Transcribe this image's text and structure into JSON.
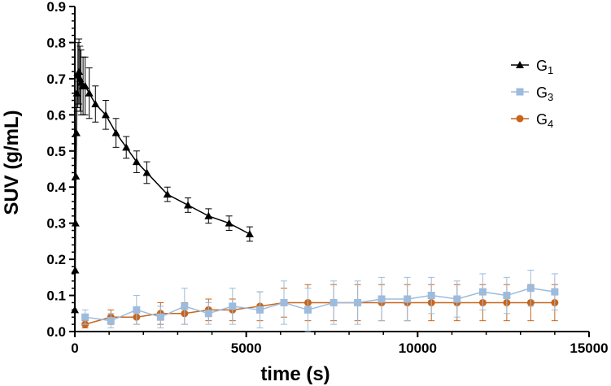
{
  "chart_data": {
    "type": "line",
    "title": "",
    "xlabel": "time (s)",
    "ylabel": "SUV (g/mL)",
    "xlim": [
      0,
      15000
    ],
    "ylim": [
      0,
      0.9
    ],
    "xticks": [
      "0",
      "5000",
      "10000",
      "15000"
    ],
    "yticks": [
      "0.0",
      "0.1",
      "0.2",
      "0.3",
      "0.4",
      "0.5",
      "0.6",
      "0.7",
      "0.8",
      "0.9"
    ],
    "grid": false,
    "legend_position": "top-right",
    "series": [
      {
        "name": "G1",
        "legend_base": "G",
        "legend_sub": "1",
        "color": "#000000",
        "marker": "triangle",
        "points": [
          {
            "x": 0,
            "y": 0.06,
            "err": 0.0
          },
          {
            "x": 10,
            "y": 0.17,
            "err": 0.0
          },
          {
            "x": 20,
            "y": 0.3,
            "err": 0.0
          },
          {
            "x": 30,
            "y": 0.43,
            "err": 0.0
          },
          {
            "x": 45,
            "y": 0.55,
            "err": 0.0
          },
          {
            "x": 60,
            "y": 0.66,
            "err": 0.05
          },
          {
            "x": 90,
            "y": 0.71,
            "err": 0.09
          },
          {
            "x": 120,
            "y": 0.72,
            "err": 0.09
          },
          {
            "x": 150,
            "y": 0.7,
            "err": 0.09
          },
          {
            "x": 180,
            "y": 0.69,
            "err": 0.09
          },
          {
            "x": 240,
            "y": 0.68,
            "err": 0.08
          },
          {
            "x": 300,
            "y": 0.68,
            "err": 0.08
          },
          {
            "x": 420,
            "y": 0.66,
            "err": 0.07
          },
          {
            "x": 600,
            "y": 0.63,
            "err": 0.05
          },
          {
            "x": 900,
            "y": 0.6,
            "err": 0.04
          },
          {
            "x": 1200,
            "y": 0.55,
            "err": 0.04
          },
          {
            "x": 1500,
            "y": 0.51,
            "err": 0.03
          },
          {
            "x": 1800,
            "y": 0.47,
            "err": 0.03
          },
          {
            "x": 2100,
            "y": 0.44,
            "err": 0.03
          },
          {
            "x": 2700,
            "y": 0.38,
            "err": 0.02
          },
          {
            "x": 3300,
            "y": 0.35,
            "err": 0.02
          },
          {
            "x": 3900,
            "y": 0.32,
            "err": 0.02
          },
          {
            "x": 4500,
            "y": 0.3,
            "err": 0.02
          },
          {
            "x": 5100,
            "y": 0.27,
            "err": 0.02
          }
        ]
      },
      {
        "name": "G3",
        "legend_base": "G",
        "legend_sub": "3",
        "color": "#9dbbdc",
        "marker": "square",
        "points": [
          {
            "x": 300,
            "y": 0.04,
            "err": 0.02
          },
          {
            "x": 1050,
            "y": 0.03,
            "err": 0.02
          },
          {
            "x": 1800,
            "y": 0.06,
            "err": 0.04
          },
          {
            "x": 2500,
            "y": 0.04,
            "err": 0.03
          },
          {
            "x": 3200,
            "y": 0.07,
            "err": 0.05
          },
          {
            "x": 3900,
            "y": 0.05,
            "err": 0.03
          },
          {
            "x": 4600,
            "y": 0.07,
            "err": 0.05
          },
          {
            "x": 5400,
            "y": 0.06,
            "err": 0.05
          },
          {
            "x": 6100,
            "y": 0.08,
            "err": 0.06
          },
          {
            "x": 6800,
            "y": 0.06,
            "err": 0.06
          },
          {
            "x": 7550,
            "y": 0.08,
            "err": 0.06
          },
          {
            "x": 8250,
            "y": 0.08,
            "err": 0.06
          },
          {
            "x": 8950,
            "y": 0.09,
            "err": 0.06
          },
          {
            "x": 9700,
            "y": 0.09,
            "err": 0.06
          },
          {
            "x": 10400,
            "y": 0.1,
            "err": 0.05
          },
          {
            "x": 11150,
            "y": 0.09,
            "err": 0.05
          },
          {
            "x": 11900,
            "y": 0.11,
            "err": 0.05
          },
          {
            "x": 12600,
            "y": 0.1,
            "err": 0.05
          },
          {
            "x": 13300,
            "y": 0.12,
            "err": 0.05
          },
          {
            "x": 14000,
            "y": 0.11,
            "err": 0.05
          }
        ]
      },
      {
        "name": "G4",
        "legend_base": "G",
        "legend_sub": "4",
        "color": "#c8651b",
        "marker": "circle",
        "points": [
          {
            "x": 300,
            "y": 0.02,
            "err": 0.01
          },
          {
            "x": 1050,
            "y": 0.04,
            "err": 0.02
          },
          {
            "x": 1800,
            "y": 0.04,
            "err": 0.02
          },
          {
            "x": 2500,
            "y": 0.05,
            "err": 0.03
          },
          {
            "x": 3200,
            "y": 0.05,
            "err": 0.03
          },
          {
            "x": 3900,
            "y": 0.06,
            "err": 0.03
          },
          {
            "x": 4600,
            "y": 0.06,
            "err": 0.03
          },
          {
            "x": 5400,
            "y": 0.07,
            "err": 0.04
          },
          {
            "x": 6100,
            "y": 0.08,
            "err": 0.04
          },
          {
            "x": 6800,
            "y": 0.08,
            "err": 0.05
          },
          {
            "x": 7550,
            "y": 0.08,
            "err": 0.05
          },
          {
            "x": 8250,
            "y": 0.08,
            "err": 0.05
          },
          {
            "x": 8950,
            "y": 0.08,
            "err": 0.05
          },
          {
            "x": 9700,
            "y": 0.08,
            "err": 0.05
          },
          {
            "x": 10400,
            "y": 0.08,
            "err": 0.05
          },
          {
            "x": 11150,
            "y": 0.08,
            "err": 0.05
          },
          {
            "x": 11900,
            "y": 0.08,
            "err": 0.05
          },
          {
            "x": 12600,
            "y": 0.08,
            "err": 0.05
          },
          {
            "x": 13300,
            "y": 0.08,
            "err": 0.05
          },
          {
            "x": 14000,
            "y": 0.08,
            "err": 0.05
          }
        ]
      }
    ]
  }
}
